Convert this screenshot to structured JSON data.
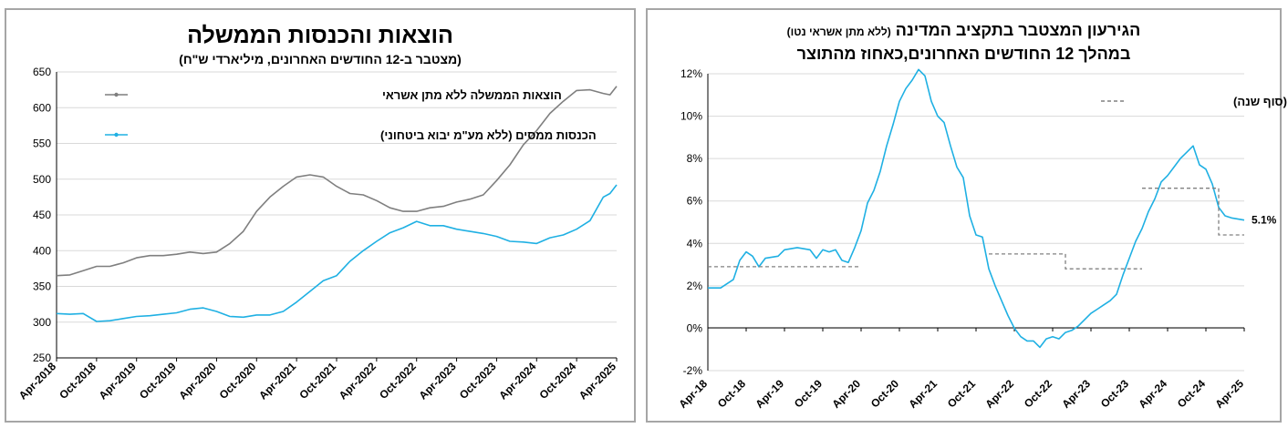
{
  "chart_data": [
    {
      "type": "line",
      "title": "הוצאות והכנסות הממשלה",
      "subtitle": "(מצטבר ב-12 החודשים האחרונים, מיליארדי ש\"ח)",
      "xlabel": "",
      "ylabel": "",
      "ylim": [
        250,
        650
      ],
      "yticks": [
        "250",
        "300",
        "350",
        "400",
        "450",
        "500",
        "550",
        "600",
        "650"
      ],
      "x_tick_labels": [
        "Apr-2018",
        "Oct-2018",
        "Apr-2019",
        "Oct-2019",
        "Apr-2020",
        "Oct-2020",
        "Apr-2021",
        "Oct-2021",
        "Apr-2022",
        "Oct-2022",
        "Apr-2023",
        "Oct-2023",
        "Apr-2024",
        "Oct-2024",
        "Apr-2025"
      ],
      "x_start": "2018-04",
      "x_end": "2025-04",
      "grid": "horizontal",
      "legend_position": "top-left",
      "series": [
        {
          "name": "הוצאות הממשלה ללא מתן אשראי",
          "color": "#7f7f7f",
          "points": [
            [
              "2018-04",
              365
            ],
            [
              "2018-06",
              366
            ],
            [
              "2018-08",
              372
            ],
            [
              "2018-10",
              378
            ],
            [
              "2018-12",
              378
            ],
            [
              "2019-02",
              383
            ],
            [
              "2019-04",
              390
            ],
            [
              "2019-06",
              393
            ],
            [
              "2019-08",
              393
            ],
            [
              "2019-10",
              395
            ],
            [
              "2019-12",
              398
            ],
            [
              "2020-02",
              396
            ],
            [
              "2020-04",
              398
            ],
            [
              "2020-06",
              410
            ],
            [
              "2020-08",
              427
            ],
            [
              "2020-10",
              455
            ],
            [
              "2020-12",
              475
            ],
            [
              "2021-02",
              490
            ],
            [
              "2021-04",
              503
            ],
            [
              "2021-06",
              506
            ],
            [
              "2021-08",
              503
            ],
            [
              "2021-10",
              490
            ],
            [
              "2021-12",
              480
            ],
            [
              "2022-02",
              478
            ],
            [
              "2022-04",
              470
            ],
            [
              "2022-06",
              460
            ],
            [
              "2022-08",
              455
            ],
            [
              "2022-10",
              455
            ],
            [
              "2022-12",
              460
            ],
            [
              "2023-02",
              462
            ],
            [
              "2023-04",
              468
            ],
            [
              "2023-06",
              472
            ],
            [
              "2023-08",
              478
            ],
            [
              "2023-10",
              498
            ],
            [
              "2023-12",
              520
            ],
            [
              "2024-02",
              548
            ],
            [
              "2024-04",
              568
            ],
            [
              "2024-06",
              592
            ],
            [
              "2024-08",
              609
            ],
            [
              "2024-10",
              624
            ],
            [
              "2024-12",
              625
            ],
            [
              "2025-02",
              620
            ],
            [
              "2025-03",
              618
            ],
            [
              "2025-04",
              630
            ]
          ]
        },
        {
          "name": "הכנסות ממסים (ללא מע\"מ יבוא ביטחוני)",
          "color": "#1fb0e3",
          "points": [
            [
              "2018-04",
              312
            ],
            [
              "2018-06",
              311
            ],
            [
              "2018-08",
              312
            ],
            [
              "2018-10",
              301
            ],
            [
              "2018-12",
              302
            ],
            [
              "2019-02",
              305
            ],
            [
              "2019-04",
              308
            ],
            [
              "2019-06",
              309
            ],
            [
              "2019-08",
              311
            ],
            [
              "2019-10",
              313
            ],
            [
              "2019-12",
              318
            ],
            [
              "2020-02",
              320
            ],
            [
              "2020-04",
              315
            ],
            [
              "2020-06",
              308
            ],
            [
              "2020-08",
              307
            ],
            [
              "2020-10",
              310
            ],
            [
              "2020-12",
              310
            ],
            [
              "2021-02",
              315
            ],
            [
              "2021-04",
              328
            ],
            [
              "2021-06",
              343
            ],
            [
              "2021-08",
              358
            ],
            [
              "2021-10",
              365
            ],
            [
              "2021-12",
              385
            ],
            [
              "2022-02",
              400
            ],
            [
              "2022-04",
              413
            ],
            [
              "2022-06",
              425
            ],
            [
              "2022-08",
              432
            ],
            [
              "2022-10",
              441
            ],
            [
              "2022-12",
              435
            ],
            [
              "2023-02",
              435
            ],
            [
              "2023-04",
              430
            ],
            [
              "2023-06",
              427
            ],
            [
              "2023-08",
              424
            ],
            [
              "2023-10",
              420
            ],
            [
              "2023-12",
              413
            ],
            [
              "2024-02",
              412
            ],
            [
              "2024-04",
              410
            ],
            [
              "2024-06",
              418
            ],
            [
              "2024-08",
              422
            ],
            [
              "2024-10",
              430
            ],
            [
              "2024-12",
              442
            ],
            [
              "2025-02",
              475
            ],
            [
              "2025-03",
              480
            ],
            [
              "2025-04",
              492
            ]
          ]
        }
      ]
    },
    {
      "type": "line",
      "title_main": "הגירעון המצטבר בתקציב המדינה",
      "title_note": "(ללא מתן אשראי נטו)",
      "title_line2": "במהלך 12 החודשים האחרונים,כאחוז מהתוצר",
      "xlabel": "",
      "ylabel": "",
      "ylim": [
        -2,
        12
      ],
      "yticks": [
        "-2%",
        "0%",
        "2%",
        "4%",
        "6%",
        "8%",
        "10%",
        "12%"
      ],
      "x_tick_labels": [
        "Apr-18",
        "Oct-18",
        "Apr-19",
        "Oct-19",
        "Apr-20",
        "Oct-20",
        "Apr-21",
        "Oct-21",
        "Apr-22",
        "Oct-22",
        "Apr-23",
        "Oct-23",
        "Apr-24",
        "Oct-24",
        "Apr-25"
      ],
      "x_start": "2018-04",
      "x_end": "2025-04",
      "grid": "horizontal",
      "legend_position": "top-right",
      "end_label": "5.1%",
      "series": [
        {
          "name": "",
          "color": "#1fb0e3",
          "points": [
            [
              "2018-04",
              1.9
            ],
            [
              "2018-06",
              1.9
            ],
            [
              "2018-08",
              2.3
            ],
            [
              "2018-09",
              3.2
            ],
            [
              "2018-10",
              3.6
            ],
            [
              "2018-11",
              3.4
            ],
            [
              "2018-12",
              2.9
            ],
            [
              "2019-01",
              3.3
            ],
            [
              "2019-03",
              3.4
            ],
            [
              "2019-04",
              3.7
            ],
            [
              "2019-06",
              3.8
            ],
            [
              "2019-08",
              3.7
            ],
            [
              "2019-09",
              3.3
            ],
            [
              "2019-10",
              3.7
            ],
            [
              "2019-11",
              3.6
            ],
            [
              "2019-12",
              3.7
            ],
            [
              "2020-01",
              3.2
            ],
            [
              "2020-02",
              3.1
            ],
            [
              "2020-03",
              3.8
            ],
            [
              "2020-04",
              4.6
            ],
            [
              "2020-05",
              5.9
            ],
            [
              "2020-06",
              6.5
            ],
            [
              "2020-07",
              7.4
            ],
            [
              "2020-08",
              8.6
            ],
            [
              "2020-09",
              9.6
            ],
            [
              "2020-10",
              10.7
            ],
            [
              "2020-11",
              11.3
            ],
            [
              "2020-12",
              11.7
            ],
            [
              "2021-01",
              12.2
            ],
            [
              "2021-02",
              11.9
            ],
            [
              "2021-03",
              10.7
            ],
            [
              "2021-04",
              10.0
            ],
            [
              "2021-05",
              9.7
            ],
            [
              "2021-06",
              8.6
            ],
            [
              "2021-07",
              7.6
            ],
            [
              "2021-08",
              7.1
            ],
            [
              "2021-09",
              5.3
            ],
            [
              "2021-10",
              4.4
            ],
            [
              "2021-11",
              4.3
            ],
            [
              "2021-12",
              2.8
            ],
            [
              "2022-01",
              2.0
            ],
            [
              "2022-02",
              1.3
            ],
            [
              "2022-03",
              0.6
            ],
            [
              "2022-04",
              0.0
            ],
            [
              "2022-05",
              -0.4
            ],
            [
              "2022-06",
              -0.6
            ],
            [
              "2022-07",
              -0.6
            ],
            [
              "2022-08",
              -0.9
            ],
            [
              "2022-09",
              -0.5
            ],
            [
              "2022-10",
              -0.4
            ],
            [
              "2022-11",
              -0.5
            ],
            [
              "2022-12",
              -0.2
            ],
            [
              "2023-01",
              -0.1
            ],
            [
              "2023-02",
              0.1
            ],
            [
              "2023-03",
              0.4
            ],
            [
              "2023-04",
              0.7
            ],
            [
              "2023-05",
              0.9
            ],
            [
              "2023-06",
              1.1
            ],
            [
              "2023-07",
              1.3
            ],
            [
              "2023-08",
              1.6
            ],
            [
              "2023-09",
              2.5
            ],
            [
              "2023-10",
              3.3
            ],
            [
              "2023-11",
              4.1
            ],
            [
              "2023-12",
              4.7
            ],
            [
              "2024-01",
              5.5
            ],
            [
              "2024-02",
              6.1
            ],
            [
              "2024-03",
              6.9
            ],
            [
              "2024-04",
              7.2
            ],
            [
              "2024-05",
              7.6
            ],
            [
              "2024-06",
              8.0
            ],
            [
              "2024-07",
              8.3
            ],
            [
              "2024-08",
              8.6
            ],
            [
              "2024-09",
              7.7
            ],
            [
              "2024-10",
              7.5
            ],
            [
              "2024-11",
              6.8
            ],
            [
              "2024-12",
              5.7
            ],
            [
              "2025-01",
              5.3
            ],
            [
              "2025-02",
              5.2
            ],
            [
              "2025-04",
              5.1
            ]
          ]
        },
        {
          "name": "יעד הגירעון (סוף שנה)",
          "color": "#808080",
          "dashed": true,
          "segments": [
            [
              [
                "2018-04",
                2.9
              ],
              [
                "2020-04",
                2.9
              ]
            ],
            [
              [
                "2021-12",
                3.5
              ],
              [
                "2022-12",
                3.5
              ],
              [
                "2022-12",
                2.8
              ],
              [
                "2023-12",
                2.8
              ]
            ],
            [
              [
                "2023-12",
                6.6
              ],
              [
                "2024-12",
                6.6
              ],
              [
                "2024-12",
                4.4
              ],
              [
                "2025-04",
                4.4
              ]
            ]
          ]
        }
      ]
    }
  ]
}
